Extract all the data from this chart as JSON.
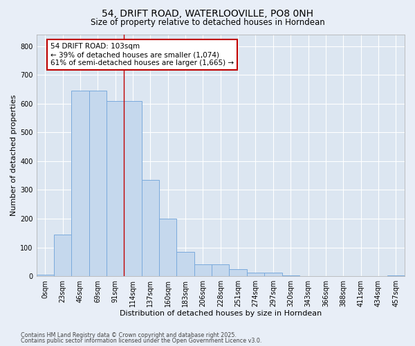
{
  "title_line1": "54, DRIFT ROAD, WATERLOOVILLE, PO8 0NH",
  "title_line2": "Size of property relative to detached houses in Horndean",
  "xlabel": "Distribution of detached houses by size in Horndean",
  "ylabel": "Number of detached properties",
  "bin_labels": [
    "0sqm",
    "23sqm",
    "46sqm",
    "69sqm",
    "91sqm",
    "114sqm",
    "137sqm",
    "160sqm",
    "183sqm",
    "206sqm",
    "228sqm",
    "251sqm",
    "274sqm",
    "297sqm",
    "320sqm",
    "343sqm",
    "366sqm",
    "388sqm",
    "411sqm",
    "434sqm",
    "457sqm"
  ],
  "bar_heights": [
    5,
    145,
    645,
    645,
    610,
    610,
    335,
    200,
    85,
    42,
    42,
    25,
    12,
    12,
    3,
    0,
    0,
    0,
    0,
    0,
    3
  ],
  "bar_color": "#c5d8ed",
  "bar_edge_color": "#7aaadc",
  "bg_color": "#dce6f1",
  "grid_color": "#ffffff",
  "vline_x": 4.5,
  "vline_color": "#c00000",
  "annotation_title": "54 DRIFT ROAD: 103sqm",
  "annotation_line2": "← 39% of detached houses are smaller (1,074)",
  "annotation_line3": "61% of semi-detached houses are larger (1,665) →",
  "annotation_box_color": "#c00000",
  "ylim": [
    0,
    840
  ],
  "yticks": [
    0,
    100,
    200,
    300,
    400,
    500,
    600,
    700,
    800
  ],
  "footnote1": "Contains HM Land Registry data © Crown copyright and database right 2025.",
  "footnote2": "Contains public sector information licensed under the Open Government Licence v3.0."
}
